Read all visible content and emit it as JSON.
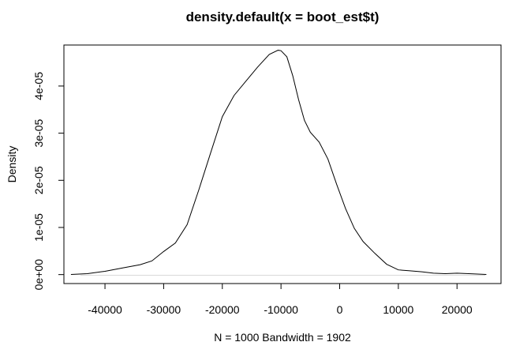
{
  "chart_data": {
    "type": "line",
    "title": "density.default(x = boot_est$t)",
    "xlabel": "N = 1000   Bandwidth = 1902",
    "ylabel": "Density",
    "xlim": [
      -47000,
      27500
    ],
    "ylim": [
      -1.9e-06,
      4.87e-05
    ],
    "x_ticks": [
      {
        "value": -40000,
        "label": "-40000"
      },
      {
        "value": -30000,
        "label": "-30000"
      },
      {
        "value": -20000,
        "label": "-20000"
      },
      {
        "value": -10000,
        "label": "-10000"
      },
      {
        "value": 0,
        "label": "0"
      },
      {
        "value": 10000,
        "label": "10000"
      },
      {
        "value": 20000,
        "label": "20000"
      }
    ],
    "y_ticks": [
      {
        "value": 0,
        "label": "0e+00"
      },
      {
        "value": 1e-05,
        "label": "1e-05"
      },
      {
        "value": 2e-05,
        "label": "2e-05"
      },
      {
        "value": 3e-05,
        "label": "3e-05"
      },
      {
        "value": 4e-05,
        "label": "4e-05"
      }
    ],
    "grid": false,
    "series": [
      {
        "points": [
          [
            -45800,
            3e-08
          ],
          [
            -43000,
            2e-07
          ],
          [
            -40000,
            7e-07
          ],
          [
            -37000,
            1.4e-06
          ],
          [
            -34000,
            2.1e-06
          ],
          [
            -32000,
            2.9e-06
          ],
          [
            -30000,
            4.9e-06
          ],
          [
            -28000,
            6.7e-06
          ],
          [
            -26000,
            1.06e-05
          ],
          [
            -24000,
            1.8e-05
          ],
          [
            -22000,
            2.58e-05
          ],
          [
            -20000,
            3.35e-05
          ],
          [
            -18000,
            3.8e-05
          ],
          [
            -16000,
            4.1e-05
          ],
          [
            -14000,
            4.4e-05
          ],
          [
            -12000,
            4.67e-05
          ],
          [
            -10500,
            4.76e-05
          ],
          [
            -10000,
            4.75e-05
          ],
          [
            -9000,
            4.62e-05
          ],
          [
            -8000,
            4.22e-05
          ],
          [
            -7000,
            3.71e-05
          ],
          [
            -6000,
            3.27e-05
          ],
          [
            -5000,
            3.02e-05
          ],
          [
            -3500,
            2.81e-05
          ],
          [
            -2000,
            2.45e-05
          ],
          [
            -500,
            1.91e-05
          ],
          [
            1000,
            1.4e-05
          ],
          [
            2500,
            9.8e-06
          ],
          [
            4000,
            7e-06
          ],
          [
            6000,
            4.5e-06
          ],
          [
            8000,
            2.2e-06
          ],
          [
            10000,
            1e-06
          ],
          [
            12000,
            8e-07
          ],
          [
            14000,
            6e-07
          ],
          [
            16000,
            3e-07
          ],
          [
            18000,
            2e-07
          ],
          [
            20000,
            3e-07
          ],
          [
            22000,
            2e-07
          ],
          [
            25000,
            3e-08
          ]
        ]
      }
    ]
  }
}
